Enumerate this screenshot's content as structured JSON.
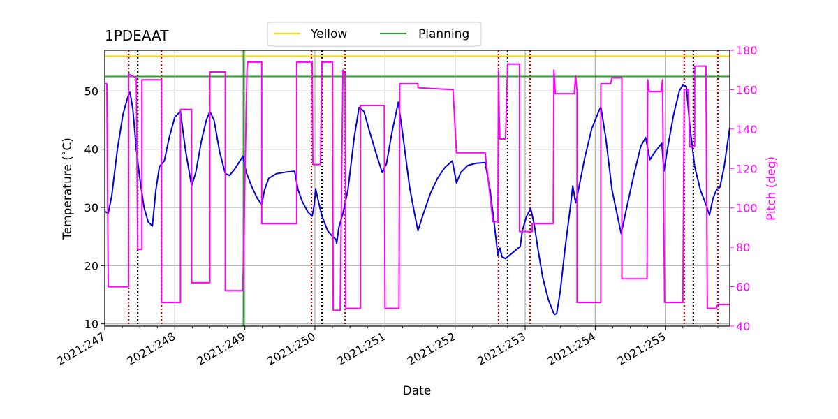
{
  "chart_data": {
    "type": "line",
    "title": "1PDEAAT",
    "xlabel": "Date",
    "ylabel_left": "Temperature ($^\\circ$C)",
    "ylabel_right": "Pitch (deg)",
    "x_tick_labels": [
      "2021:247",
      "2021:248",
      "2021:249",
      "2021:250",
      "2021:251",
      "2021:252",
      "2021:253",
      "2021:254",
      "2021:255"
    ],
    "xlim": [
      247.0,
      255.92
    ],
    "ylim_left": [
      9.6,
      57.0
    ],
    "ylim_right": [
      40,
      180
    ],
    "y_ticks_left": [
      10,
      20,
      30,
      40,
      50
    ],
    "y_ticks_right": [
      40,
      60,
      80,
      100,
      120,
      140,
      160,
      180
    ],
    "grid": true,
    "legend_position": "top-center",
    "colors": {
      "temperature": "#0000dd",
      "pitch": "#ff00ff",
      "yellow": "#ffd700",
      "planning": "#2ca02c",
      "red_vlines": "#cc0000",
      "black_vlines": "#000000",
      "grid": "#b0b0b0"
    },
    "legend": [
      {
        "label": "Yellow",
        "color": "#ffd700"
      },
      {
        "label": "Planning",
        "color": "#2ca02c"
      }
    ],
    "yellow_limit": 56.0,
    "planning_limit": 52.5,
    "planning_start_x": 248.98,
    "red_vlines": [
      247.34,
      247.81,
      249.95,
      250.43,
      252.62,
      253.07,
      255.27,
      255.75
    ],
    "black_vlines": [
      247.47,
      250.1,
      252.75,
      255.4
    ],
    "series": [
      {
        "name": "Temperature",
        "axis": "left",
        "points": [
          [
            247.0,
            29.3
          ],
          [
            247.05,
            29.0
          ],
          [
            247.1,
            32.0
          ],
          [
            247.18,
            40.0
          ],
          [
            247.26,
            46.0
          ],
          [
            247.33,
            49.0
          ],
          [
            247.36,
            49.8
          ],
          [
            247.4,
            47.0
          ],
          [
            247.45,
            40.0
          ],
          [
            247.5,
            35.0
          ],
          [
            247.56,
            30.0
          ],
          [
            247.62,
            27.5
          ],
          [
            247.68,
            26.8
          ],
          [
            247.73,
            33.0
          ],
          [
            247.78,
            37.0
          ],
          [
            247.85,
            38.0
          ],
          [
            247.92,
            42.0
          ],
          [
            248.0,
            45.5
          ],
          [
            248.08,
            46.5
          ],
          [
            248.15,
            40.0
          ],
          [
            248.24,
            33.7
          ],
          [
            248.3,
            36.0
          ],
          [
            248.38,
            41.5
          ],
          [
            248.45,
            45.0
          ],
          [
            248.5,
            46.5
          ],
          [
            248.56,
            45.0
          ],
          [
            248.64,
            39.5
          ],
          [
            248.72,
            35.8
          ],
          [
            248.78,
            35.5
          ],
          [
            248.85,
            36.5
          ],
          [
            248.94,
            38.2
          ],
          [
            248.97,
            38.8
          ],
          [
            249.02,
            36.0
          ],
          [
            249.1,
            33.5
          ],
          [
            249.18,
            31.5
          ],
          [
            249.24,
            30.5
          ],
          [
            249.28,
            33.0
          ],
          [
            249.34,
            35.0
          ],
          [
            249.45,
            35.8
          ],
          [
            249.6,
            36.1
          ],
          [
            249.71,
            36.2
          ],
          [
            249.76,
            33.0
          ],
          [
            249.82,
            31.0
          ],
          [
            249.9,
            29.2
          ],
          [
            249.96,
            28.5
          ],
          [
            249.99,
            30.5
          ],
          [
            250.01,
            33.2
          ],
          [
            250.05,
            31.0
          ],
          [
            250.1,
            28.5
          ],
          [
            250.18,
            26.0
          ],
          [
            250.25,
            25.0
          ],
          [
            250.3,
            24.5
          ],
          [
            250.31,
            23.8
          ],
          [
            250.34,
            26.5
          ],
          [
            250.4,
            29.0
          ],
          [
            250.47,
            33.0
          ],
          [
            250.56,
            42.0
          ],
          [
            250.63,
            47.2
          ],
          [
            250.7,
            46.5
          ],
          [
            250.78,
            43.0
          ],
          [
            250.88,
            39.0
          ],
          [
            250.96,
            36.0
          ],
          [
            251.02,
            37.5
          ],
          [
            251.1,
            43.0
          ],
          [
            251.19,
            48.1
          ],
          [
            251.27,
            41.0
          ],
          [
            251.35,
            33.5
          ],
          [
            251.42,
            29.0
          ],
          [
            251.47,
            26.0
          ],
          [
            251.55,
            29.0
          ],
          [
            251.65,
            32.5
          ],
          [
            251.75,
            35.0
          ],
          [
            251.85,
            36.8
          ],
          [
            251.96,
            38.0
          ],
          [
            252.02,
            34.2
          ],
          [
            252.08,
            36.0
          ],
          [
            252.18,
            37.2
          ],
          [
            252.3,
            37.6
          ],
          [
            252.43,
            37.7
          ],
          [
            252.5,
            33.0
          ],
          [
            252.56,
            27.0
          ],
          [
            252.61,
            21.8
          ],
          [
            252.64,
            23.0
          ],
          [
            252.67,
            21.5
          ],
          [
            252.72,
            21.2
          ],
          [
            252.8,
            22.0
          ],
          [
            252.9,
            23.0
          ],
          [
            252.93,
            23.3
          ],
          [
            252.96,
            26.0
          ],
          [
            253.02,
            28.5
          ],
          [
            253.08,
            29.8
          ],
          [
            253.13,
            27.0
          ],
          [
            253.18,
            23.0
          ],
          [
            253.25,
            18.0
          ],
          [
            253.33,
            14.2
          ],
          [
            253.4,
            12.0
          ],
          [
            253.42,
            11.6
          ],
          [
            253.45,
            11.8
          ],
          [
            253.5,
            15.5
          ],
          [
            253.57,
            23.0
          ],
          [
            253.65,
            30.5
          ],
          [
            253.68,
            33.7
          ],
          [
            253.72,
            30.8
          ],
          [
            253.76,
            33.0
          ],
          [
            253.85,
            38.5
          ],
          [
            253.95,
            43.5
          ],
          [
            254.05,
            46.5
          ],
          [
            254.08,
            47.3
          ],
          [
            254.15,
            42.0
          ],
          [
            254.24,
            33.0
          ],
          [
            254.3,
            29.5
          ],
          [
            254.37,
            25.5
          ],
          [
            254.45,
            30.0
          ],
          [
            254.55,
            35.5
          ],
          [
            254.65,
            40.5
          ],
          [
            254.72,
            42.0
          ],
          [
            254.78,
            38.2
          ],
          [
            254.85,
            39.5
          ],
          [
            254.95,
            41.0
          ],
          [
            254.98,
            36.2
          ],
          [
            255.03,
            40.0
          ],
          [
            255.12,
            46.0
          ],
          [
            255.2,
            50.0
          ],
          [
            255.25,
            51.0
          ],
          [
            255.3,
            50.8
          ],
          [
            255.35,
            44.0
          ],
          [
            255.42,
            37.0
          ],
          [
            255.5,
            33.0
          ],
          [
            255.58,
            30.5
          ],
          [
            255.63,
            28.7
          ],
          [
            255.68,
            31.5
          ],
          [
            255.73,
            33.0
          ],
          [
            255.78,
            33.5
          ],
          [
            255.84,
            37.0
          ],
          [
            255.92,
            43.7
          ]
        ]
      },
      {
        "name": "Pitch",
        "axis": "right",
        "points": [
          [
            247.0,
            163
          ],
          [
            247.03,
            163
          ],
          [
            247.05,
            60
          ],
          [
            247.34,
            60
          ],
          [
            247.34,
            168
          ],
          [
            247.45,
            166
          ],
          [
            247.47,
            79
          ],
          [
            247.53,
            79
          ],
          [
            247.53,
            165
          ],
          [
            247.81,
            165
          ],
          [
            247.81,
            52
          ],
          [
            248.08,
            52
          ],
          [
            248.08,
            150
          ],
          [
            248.24,
            150
          ],
          [
            248.24,
            62
          ],
          [
            248.5,
            62
          ],
          [
            248.5,
            169
          ],
          [
            248.72,
            169
          ],
          [
            248.72,
            58
          ],
          [
            248.97,
            58
          ],
          [
            249.03,
            170
          ],
          [
            249.04,
            174
          ],
          [
            249.24,
            174
          ],
          [
            249.24,
            92
          ],
          [
            249.74,
            92
          ],
          [
            249.74,
            174
          ],
          [
            249.96,
            174
          ],
          [
            249.97,
            122
          ],
          [
            250.08,
            122
          ],
          [
            250.1,
            174
          ],
          [
            250.25,
            174
          ],
          [
            250.26,
            48
          ],
          [
            250.36,
            48
          ],
          [
            250.4,
            170
          ],
          [
            250.43,
            168
          ],
          [
            250.44,
            49
          ],
          [
            250.65,
            49
          ],
          [
            250.65,
            152
          ],
          [
            250.99,
            152
          ],
          [
            251.0,
            49
          ],
          [
            251.2,
            49
          ],
          [
            251.21,
            163
          ],
          [
            251.47,
            163
          ],
          [
            251.47,
            161
          ],
          [
            251.97,
            160
          ],
          [
            252.02,
            128
          ],
          [
            252.43,
            128
          ],
          [
            252.54,
            93
          ],
          [
            252.61,
            93
          ],
          [
            252.62,
            170
          ],
          [
            252.63,
            146
          ],
          [
            252.64,
            135
          ],
          [
            252.72,
            135
          ],
          [
            252.75,
            173
          ],
          [
            252.92,
            173
          ],
          [
            252.92,
            88
          ],
          [
            253.1,
            88
          ],
          [
            253.1,
            92
          ],
          [
            253.4,
            92
          ],
          [
            253.41,
            170
          ],
          [
            253.43,
            158
          ],
          [
            253.7,
            158
          ],
          [
            253.72,
            167
          ],
          [
            253.74,
            159
          ],
          [
            253.74,
            52
          ],
          [
            254.08,
            52
          ],
          [
            254.08,
            163
          ],
          [
            254.22,
            163
          ],
          [
            254.24,
            166
          ],
          [
            254.38,
            166
          ],
          [
            254.38,
            64
          ],
          [
            254.74,
            64
          ],
          [
            254.75,
            165
          ],
          [
            254.77,
            159
          ],
          [
            254.94,
            159
          ],
          [
            254.96,
            165
          ],
          [
            254.99,
            52
          ],
          [
            255.25,
            52
          ],
          [
            255.27,
            160
          ],
          [
            255.33,
            160
          ],
          [
            255.35,
            131
          ],
          [
            255.42,
            131
          ],
          [
            255.42,
            172
          ],
          [
            255.58,
            172
          ],
          [
            255.6,
            49
          ],
          [
            255.73,
            49
          ],
          [
            255.75,
            51
          ],
          [
            255.92,
            51
          ]
        ]
      }
    ]
  }
}
